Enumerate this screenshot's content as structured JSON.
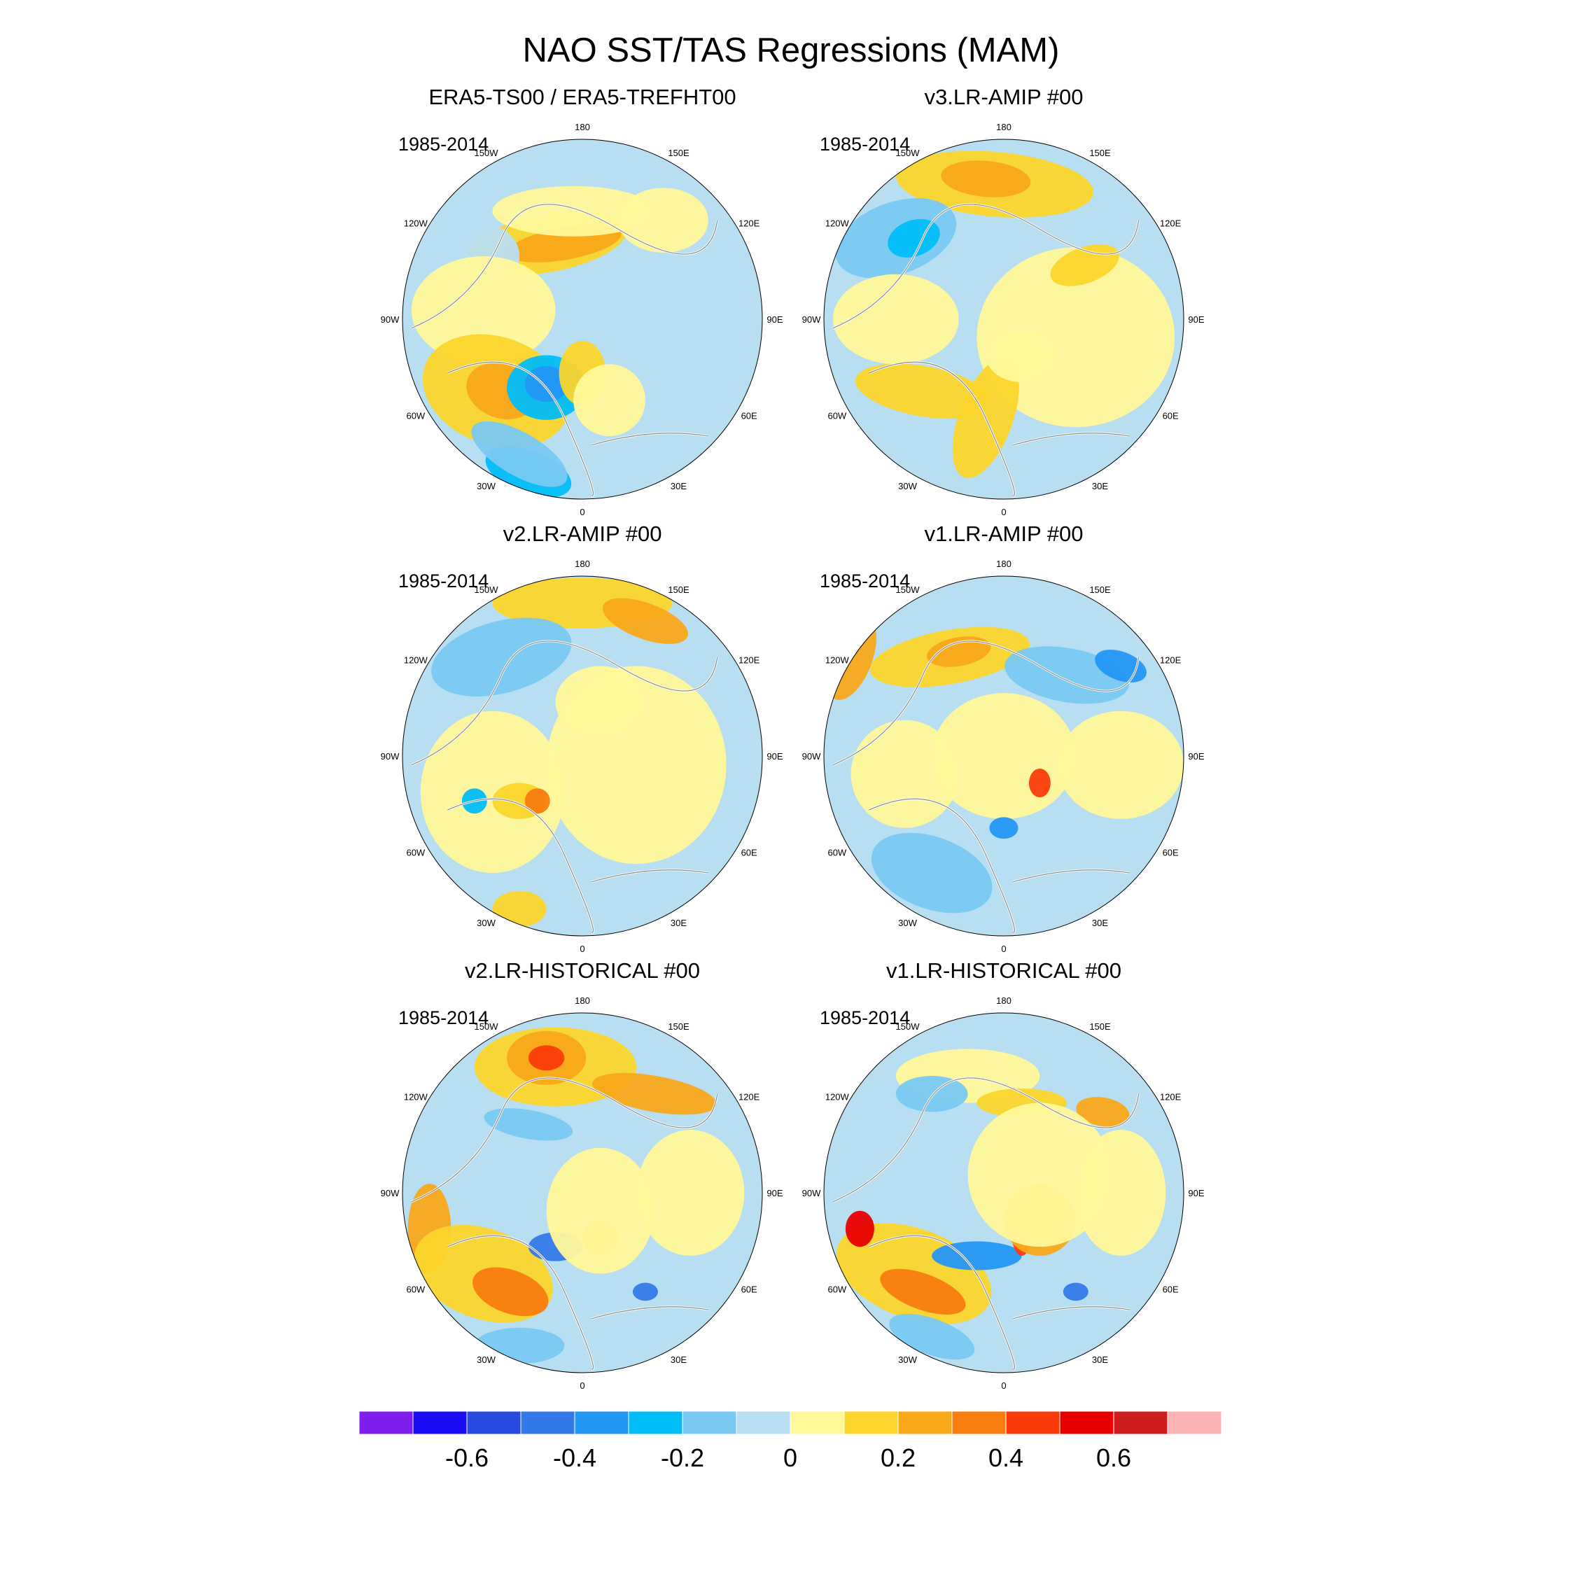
{
  "chart_data": {
    "type": "polar-map-panels",
    "title": "NAO SST/TAS Regressions (MAM)",
    "longitude_labels": [
      "180",
      "150E",
      "120E",
      "90E",
      "60E",
      "30E",
      "0",
      "30W",
      "60W",
      "90W",
      "120W",
      "150W"
    ],
    "panels": [
      {
        "title": "ERA5-TS00 / ERA5-TREFHT00",
        "period": "1985-2014",
        "position": "top-left"
      },
      {
        "title": "v3.LR-AMIP  #00",
        "period": "1985-2014",
        "position": "top-right"
      },
      {
        "title": "v2.LR-AMIP  #00",
        "period": "1985-2014",
        "position": "middle-left"
      },
      {
        "title": "v1.LR-AMIP  #00",
        "period": "1985-2014",
        "position": "middle-right"
      },
      {
        "title": "v2.LR-HISTORICAL  #00",
        "period": "1985-2014",
        "position": "bottom-left"
      },
      {
        "title": "v1.LR-HISTORICAL  #00",
        "period": "1985-2014",
        "position": "bottom-right"
      }
    ],
    "colorbar": {
      "levels": [
        -0.7,
        -0.6,
        -0.5,
        -0.4,
        -0.3,
        -0.2,
        -0.1,
        0,
        0.1,
        0.2,
        0.3,
        0.4,
        0.5,
        0.6,
        0.7
      ],
      "colors": [
        "#7f1fef",
        "#1a0cf5",
        "#2a4be0",
        "#3479e8",
        "#2497f5",
        "#00bdf8",
        "#79c9f2",
        "#b8dff1",
        "#fff89a",
        "#fbd52b",
        "#f9a81a",
        "#f97c0f",
        "#fb3c0a",
        "#e80000",
        "#d01d1d",
        "#fcb3b3"
      ],
      "tick_labels": [
        "-0.6",
        "-0.4",
        "-0.2",
        "0",
        "0.2",
        "0.4",
        "0.6"
      ]
    }
  }
}
